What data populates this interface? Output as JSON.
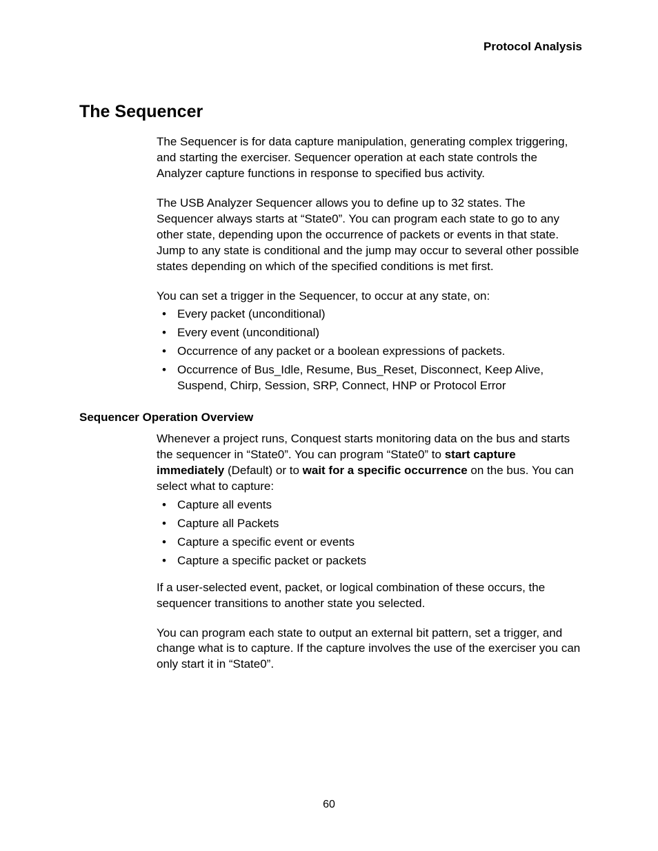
{
  "header": {
    "running": "Protocol Analysis"
  },
  "title": "The Sequencer",
  "intro": {
    "p1": "The Sequencer is for data capture manipulation, generating complex triggering, and starting the exerciser. Sequencer operation at each state controls the Analyzer capture functions in response to specified bus activity.",
    "p2": "The USB Analyzer Sequencer allows you to define up to 32 states. The Sequencer always starts at “State0”. You can program each state to go to any other state, depending upon the occurrence of packets or events in that state. Jump to any state is conditional and the jump may occur to several other possible states depending on which of the specified conditions is met first.",
    "p3": "You can set a trigger in the Sequencer, to occur at any state, on:",
    "bullets": [
      "Every packet (unconditional)",
      "Every event (unconditional)",
      "Occurrence of any packet or a boolean expressions of packets.",
      "Occurrence of Bus_Idle, Resume, Bus_Reset, Disconnect, Keep Alive, Suspend, Chirp, Session, SRP, Connect, HNP or Protocol Error"
    ]
  },
  "overview": {
    "heading": "Sequencer Operation Overview",
    "p1_a": "Whenever a project runs, Conquest starts monitoring data on the bus and starts the sequencer in “State0”. You can program “State0” to ",
    "p1_bold1": "start capture immediately",
    "p1_b": " (Default) or to ",
    "p1_bold2": "wait for a specific occurrence",
    "p1_c": " on the bus. You can select what to capture:",
    "bullets": [
      "Capture all events",
      "Capture all Packets",
      "Capture a specific event or events",
      "Capture a specific packet or packets"
    ],
    "p2": "If a user-selected event, packet, or logical combination of these occurs, the sequencer transitions to another state you selected.",
    "p3": "You can program each state to output an external bit pattern, set a trigger, and change what is to capture. If the capture involves the use of the exerciser you can only start it in “State0”."
  },
  "pageNumber": "60"
}
